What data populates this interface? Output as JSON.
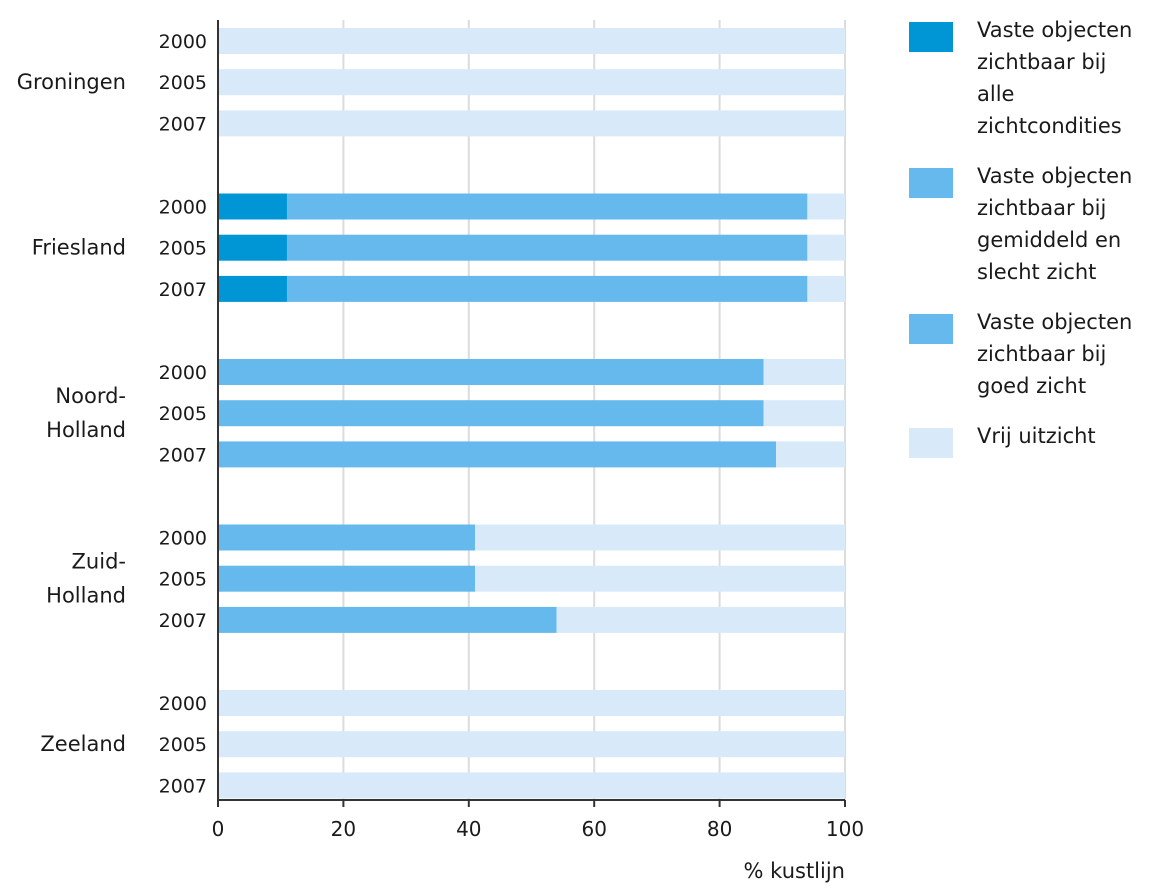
{
  "chart_data": {
    "type": "bar",
    "orientation": "horizontal",
    "stacked": true,
    "title": "",
    "xlabel": "% kustlijn",
    "ylabel": "",
    "xlim": [
      0,
      100
    ],
    "xticks": [
      "0",
      "20",
      "40",
      "60",
      "80",
      "100"
    ],
    "grid": true,
    "legend_position": "right",
    "groups": [
      {
        "label": "Groningen",
        "years": [
          "2000",
          "2005",
          "2007"
        ]
      },
      {
        "label": "Friesland",
        "years": [
          "2000",
          "2005",
          "2007"
        ]
      },
      {
        "label": "Noord-\nHolland",
        "years": [
          "2000",
          "2005",
          "2007"
        ]
      },
      {
        "label": "Zuid-\nHolland",
        "years": [
          "2000",
          "2005",
          "2007"
        ]
      },
      {
        "label": "Zeeland",
        "years": [
          "2000",
          "2005",
          "2007"
        ]
      }
    ],
    "series": [
      {
        "name": "Vaste objecten zichtbaar bij alle zichtcondities",
        "color": "#0096d6",
        "values": [
          0,
          0,
          0,
          11,
          11,
          11,
          0,
          0,
          0,
          0,
          0,
          0,
          0,
          0,
          0
        ]
      },
      {
        "name": "Vaste objecten zichtbaar bij gemiddeld en slecht zicht",
        "color": "#66b9ec",
        "values": [
          0,
          0,
          0,
          83,
          83,
          83,
          87,
          87,
          89,
          41,
          41,
          54,
          0,
          0,
          0
        ]
      },
      {
        "name": "Vaste objecten zichtbaar bij goed zicht",
        "color": "#66b9ec",
        "values": [
          0,
          0,
          0,
          0,
          0,
          0,
          0,
          0,
          0,
          0,
          0,
          0,
          0,
          0,
          0
        ]
      },
      {
        "name": "Vrij uitzicht",
        "color": "#d8e9f9",
        "values": [
          100,
          100,
          100,
          6,
          6,
          6,
          13,
          13,
          11,
          59,
          59,
          46,
          100,
          100,
          100
        ]
      }
    ]
  },
  "legend": [
    {
      "label": "Vaste objecten zichtbaar bij alle zichtcondities",
      "color": "#0096d6"
    },
    {
      "label": "Vaste objecten zichtbaar bij gemiddeld en slecht zicht",
      "color": "#66b9ec"
    },
    {
      "label": "Vaste objecten zichtbaar bij goed zicht",
      "color": "#66b9ec"
    },
    {
      "label": "Vrij uitzicht",
      "color": "#d8e9f9"
    }
  ]
}
